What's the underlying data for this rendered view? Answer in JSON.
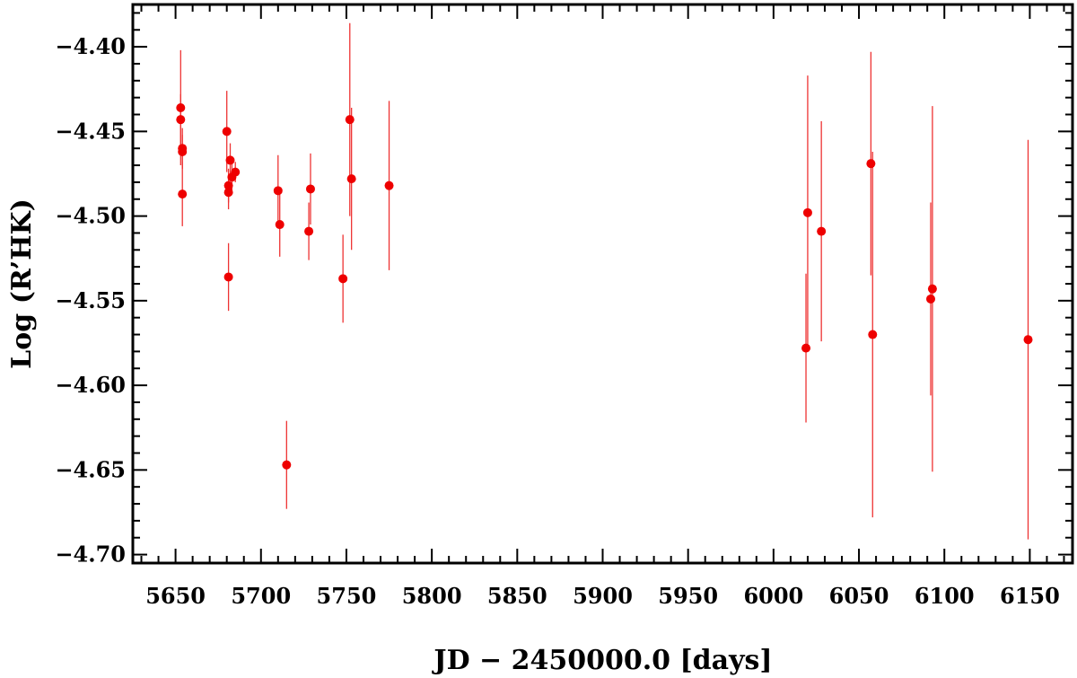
{
  "chart_data": {
    "type": "scatter",
    "xlabel": "JD − 2450000.0 [days]",
    "ylabel": "Log (R’HK)",
    "xlim": [
      5625,
      6175
    ],
    "ylim": [
      -4.705,
      -4.375
    ],
    "x_ticks": [
      5650,
      5700,
      5750,
      5800,
      5850,
      5900,
      5950,
      6000,
      6050,
      6100,
      6150
    ],
    "x_tick_labels": [
      "5650",
      "5700",
      "5750",
      "5800",
      "5850",
      "5900",
      "5950",
      "6000",
      "6050",
      "6100",
      "6150"
    ],
    "y_ticks": [
      -4.7,
      -4.65,
      -4.6,
      -4.55,
      -4.5,
      -4.45,
      -4.4
    ],
    "y_tick_labels": [
      "−4.70",
      "−4.65",
      "−4.60",
      "−4.55",
      "−4.50",
      "−4.45",
      "−4.40"
    ],
    "grid": false,
    "marker_color": "#ee0000",
    "errorbar_color": "#ee3333",
    "points": [
      {
        "x": 5653,
        "y": -4.436,
        "err": 0.034
      },
      {
        "x": 5653,
        "y": -4.443,
        "err": 0.015
      },
      {
        "x": 5654,
        "y": -4.46,
        "err": 0.012
      },
      {
        "x": 5654,
        "y": -4.462,
        "err": 0.01
      },
      {
        "x": 5654,
        "y": -4.487,
        "err": 0.019
      },
      {
        "x": 5680,
        "y": -4.45,
        "err": 0.024
      },
      {
        "x": 5681,
        "y": -4.482,
        "err": 0.01
      },
      {
        "x": 5681,
        "y": -4.486,
        "err": 0.01
      },
      {
        "x": 5682,
        "y": -4.467,
        "err": 0.01
      },
      {
        "x": 5683,
        "y": -4.477,
        "err": 0.01
      },
      {
        "x": 5685,
        "y": -4.474,
        "err": 0.006
      },
      {
        "x": 5681,
        "y": -4.536,
        "err": 0.02
      },
      {
        "x": 5710,
        "y": -4.485,
        "err": 0.021
      },
      {
        "x": 5711,
        "y": -4.505,
        "err": 0.019
      },
      {
        "x": 5715,
        "y": -4.647,
        "err": 0.026
      },
      {
        "x": 5728,
        "y": -4.509,
        "err": 0.017
      },
      {
        "x": 5729,
        "y": -4.484,
        "err": 0.021
      },
      {
        "x": 5748,
        "y": -4.537,
        "err": 0.026
      },
      {
        "x": 5752,
        "y": -4.443,
        "err": 0.057
      },
      {
        "x": 5753,
        "y": -4.478,
        "err": 0.042
      },
      {
        "x": 5775,
        "y": -4.482,
        "err": 0.05
      },
      {
        "x": 6019,
        "y": -4.578,
        "err": 0.044
      },
      {
        "x": 6020,
        "y": -4.498,
        "err": 0.081
      },
      {
        "x": 6028,
        "y": -4.509,
        "err": 0.065
      },
      {
        "x": 6057,
        "y": -4.469,
        "err": 0.066
      },
      {
        "x": 6058,
        "y": -4.57,
        "err": 0.108
      },
      {
        "x": 6092,
        "y": -4.549,
        "err": 0.057
      },
      {
        "x": 6093,
        "y": -4.543,
        "err": 0.108
      },
      {
        "x": 6149,
        "y": -4.573,
        "err": 0.118
      }
    ]
  }
}
